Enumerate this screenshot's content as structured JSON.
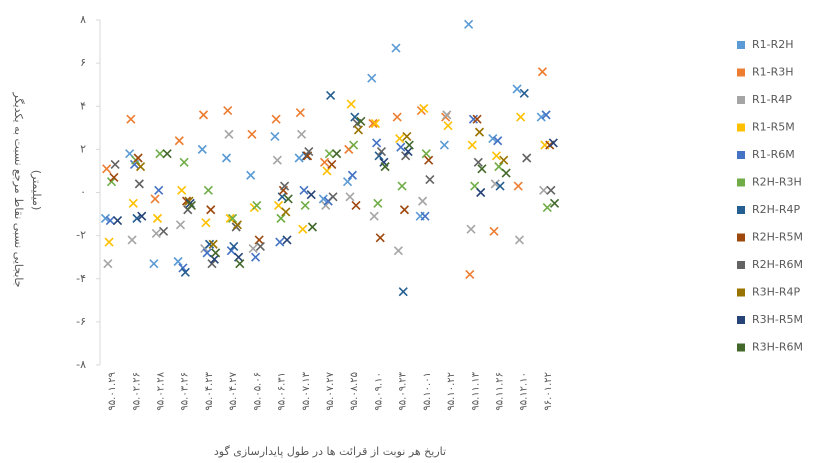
{
  "chart_data": {
    "type": "scatter",
    "xlabel": "تاریخ هر نوبت از قرائت ها در طول پایدارسازی گود",
    "ylabel": [
      "جابجایی نسبی نقاط مرجع نسبت به یکدیگر",
      "(میلیمتر)"
    ],
    "categories": [
      "۹۵.۰۱.۲۹",
      "۹۵.۰۲.۲۶",
      "۹۵.۰۲.۲۸",
      "۹۵.۰۳.۲۶",
      "۹۵.۰۴.۲۳",
      "۹۵.۰۴.۲۷",
      "۹۵.۰۵.۰۶",
      "۹۵.۰۶.۳۱",
      "۹۵.۰۷.۱۳",
      "۹۵.۰۷.۲۷",
      "۹۵.۰۸.۲۵",
      "۹۵.۰۹.۱۰",
      "۹۵.۰۹.۲۳",
      "۹۵.۱۰.۰۱",
      "۹۵.۱۰.۲۲",
      "۹۵.۱۱.۱۳",
      "۹۵.۱۱.۲۶",
      "۹۵.۱۲.۱۰",
      "۹۶.۰۱.۲۲"
    ],
    "ylim": [
      -8,
      8
    ],
    "yticks": [
      {
        "value": -8,
        "label": "-۸"
      },
      {
        "value": -6,
        "label": "-۶"
      },
      {
        "value": -4,
        "label": "-۴"
      },
      {
        "value": -2,
        "label": "-۲"
      },
      {
        "value": 0,
        "label": "۰"
      },
      {
        "value": 2,
        "label": "۲"
      },
      {
        "value": 4,
        "label": "۴"
      },
      {
        "value": 6,
        "label": "۶"
      },
      {
        "value": 8,
        "label": "۸"
      }
    ],
    "series": [
      {
        "name": "R1-R2H",
        "color": "#5b9bd5",
        "values": [
          -1.2,
          1.8,
          -3.3,
          -3.2,
          2,
          1.6,
          0.8,
          2.6,
          1.6,
          -0.3,
          0.5,
          5.3,
          6.7,
          -1.1,
          2.2,
          7.8,
          2.5,
          4.8,
          3.5
        ]
      },
      {
        "name": "R1-R3H",
        "color": "#ed7d31",
        "values": [
          1.1,
          3.4,
          -0.3,
          2.4,
          3.6,
          3.8,
          2.7,
          3.4,
          3.7,
          1.4,
          2,
          3.2,
          3.5,
          3.8,
          3.5,
          -3.8,
          -1.8,
          0.3,
          5.6
        ]
      },
      {
        "name": "R1-R4P",
        "color": "#a5a5a5",
        "values": [
          -3.3,
          -2.2,
          -1.9,
          -1.5,
          -2.6,
          2.7,
          -2.6,
          1.5,
          2.7,
          -0.6,
          -0.2,
          -1.1,
          -2.7,
          -0.4,
          3.6,
          -1.7,
          0.4,
          -2.2,
          0.1
        ]
      },
      {
        "name": "R1-R5M",
        "color": "#ffc000",
        "values": [
          -2.3,
          -0.5,
          -1.2,
          0.1,
          -1.4,
          -1.2,
          -0.7,
          -0.6,
          -1.7,
          1,
          4.1,
          3.2,
          2.5,
          3.9,
          3.1,
          2.2,
          1.7,
          3.5,
          2.2
        ]
      },
      {
        "name": "R1-R6M",
        "color": "#4472c4",
        "values": [
          -1.3,
          1.3,
          0.1,
          -3.5,
          -2.8,
          -2.7,
          -3,
          -2.3,
          0.1,
          -0.4,
          0.8,
          2.3,
          2.1,
          -1.1,
          null,
          3.4,
          2.4,
          null,
          3.6
        ]
      },
      {
        "name": "R2H-R3H",
        "color": "#70ad47",
        "values": [
          0.5,
          1.5,
          1.8,
          1.4,
          0.1,
          -1.2,
          -0.6,
          -1.2,
          -0.6,
          1.8,
          2.2,
          -0.5,
          0.3,
          1.8,
          null,
          0.3,
          1.2,
          null,
          -0.7
        ]
      },
      {
        "name": "R2H-R4P",
        "color": "#255e91",
        "values": [
          null,
          -1.2,
          null,
          -3.7,
          -2.4,
          -2.5,
          null,
          -0.2,
          1.7,
          4.5,
          3.5,
          1.7,
          -4.6,
          null,
          null,
          null,
          0.3,
          4.6,
          null
        ]
      },
      {
        "name": "R2H-R5M",
        "color": "#9e480e",
        "values": [
          0.7,
          1.6,
          null,
          -0.4,
          -0.8,
          null,
          -2.2,
          0.1,
          1.7,
          1.3,
          -0.6,
          -2.1,
          -0.8,
          1.5,
          null,
          3.4,
          null,
          null,
          2.2
        ]
      },
      {
        "name": "R2H-R6M",
        "color": "#636363",
        "values": [
          1.3,
          0.4,
          -1.8,
          -0.8,
          -3.3,
          -1.6,
          -2.5,
          0.3,
          1.9,
          -0.2,
          3.2,
          1.9,
          1.7,
          0.6,
          null,
          1.4,
          null,
          1.6,
          0.1
        ]
      },
      {
        "name": "R3H-R4P",
        "color": "#997300",
        "values": [
          null,
          1.2,
          null,
          -0.4,
          -2.4,
          -1.5,
          null,
          -0.9,
          null,
          null,
          2.9,
          null,
          2.6,
          null,
          null,
          2.8,
          1.5,
          null,
          null
        ]
      },
      {
        "name": "R3H-R5M",
        "color": "#264478",
        "values": [
          -1.3,
          -1.1,
          null,
          -0.5,
          -3.1,
          -3,
          null,
          -2.2,
          -0.1,
          null,
          null,
          1.4,
          1.9,
          null,
          null,
          0,
          null,
          null,
          2.3
        ]
      },
      {
        "name": "R3H-R6M",
        "color": "#43682b",
        "values": [
          null,
          null,
          1.8,
          -0.6,
          -2.8,
          -3.3,
          null,
          -0.3,
          -1.6,
          1.8,
          3.3,
          1.2,
          2.2,
          null,
          null,
          1.1,
          0.9,
          null,
          -0.5
        ]
      }
    ]
  }
}
